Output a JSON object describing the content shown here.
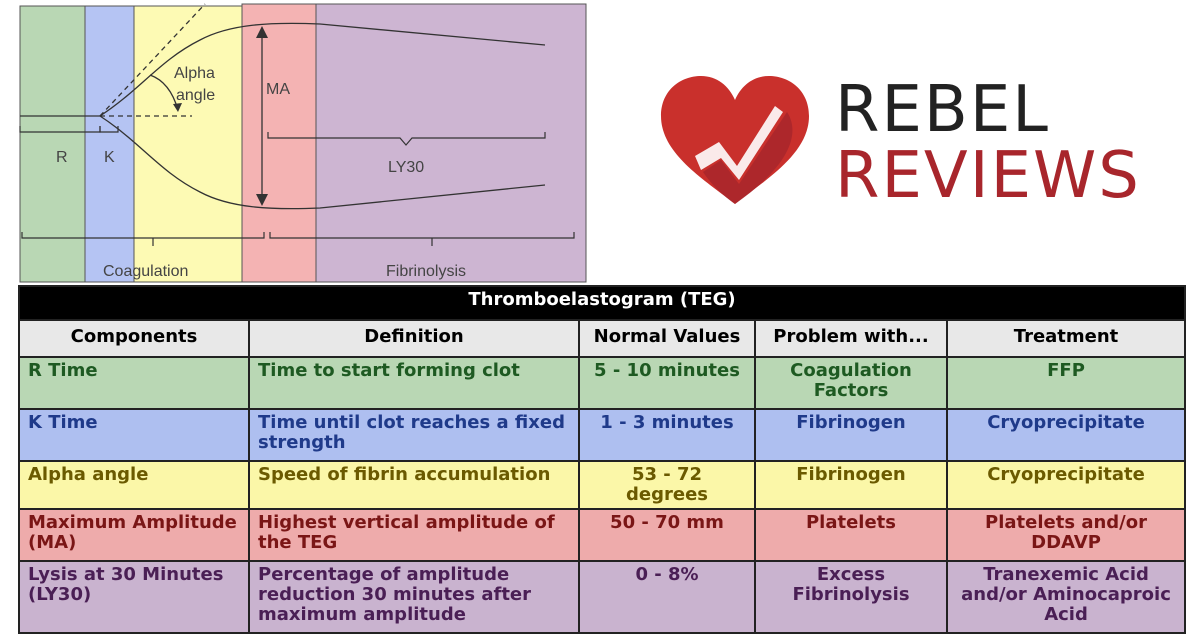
{
  "diagram": {
    "labels": {
      "r": "R",
      "k": "K",
      "alpha": [
        "Alpha",
        "angle"
      ],
      "ma": "MA",
      "ly30": "LY30",
      "coagulation": "Coagulation",
      "fibrinolysis": "Fibrinolysis"
    },
    "colors": {
      "green": "#b9d7b4",
      "blue": "#b5c4f3",
      "yellow": "#fdfab4",
      "red": "#f4b3b3",
      "purple": "#cdb5d2"
    }
  },
  "logo": {
    "line1": "REBEL",
    "line2": "REVIEWS",
    "colors": {
      "dark": "#222222",
      "red": "#a8262c",
      "heart": "#c9302c"
    }
  },
  "table": {
    "title": "Thromboelastogram (TEG)",
    "headers": [
      "Components",
      "Definition",
      "Normal Values",
      "Problem with...",
      "Treatment"
    ],
    "rows": [
      {
        "bg": "#b9d7b4",
        "fg": "#1e5a22",
        "cells": [
          "R Time",
          "Time to start forming clot",
          "5 - 10 minutes",
          "Coagulation Factors",
          "FFP"
        ]
      },
      {
        "bg": "#aebff0",
        "fg": "#1f3a8a",
        "cells": [
          "K Time",
          "Time until clot reaches a fixed strength",
          "1 - 3 minutes",
          "Fibrinogen",
          "Cryoprecipitate"
        ]
      },
      {
        "bg": "#fbf7a8",
        "fg": "#6b5a00",
        "cells": [
          "Alpha angle",
          "Speed of fibrin accumulation",
          "53 - 72 degrees",
          "Fibrinogen",
          "Cryoprecipitate"
        ]
      },
      {
        "bg": "#eeabab",
        "fg": "#7a1616",
        "cells": [
          "Maximum Amplitude (MA)",
          "Highest vertical amplitude of the TEG",
          "50 - 70 mm",
          "Platelets",
          "Platelets and/or DDAVP"
        ]
      },
      {
        "bg": "#c9b3cf",
        "fg": "#4a1f55",
        "cells": [
          "Lysis at 30 Minutes (LY30)",
          "Percentage of amplitude reduction 30 minutes after maximum amplitude",
          "0 - 8%",
          "Excess Fibrinolysis",
          "Tranexemic Acid and/or Aminocaproic Acid"
        ]
      }
    ]
  }
}
